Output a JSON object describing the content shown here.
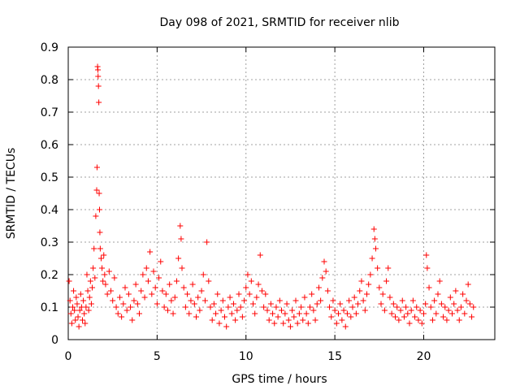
{
  "chart_data": {
    "type": "scatter",
    "title": "Day 098 of 2021, SRMTID for receiver nlib",
    "xlabel": "GPS time / hours",
    "ylabel": "SRMTID / TECUs",
    "xlim": [
      0,
      24
    ],
    "ylim": [
      0,
      0.9
    ],
    "x_ticks": [
      "0",
      "5",
      "10",
      "15",
      "20"
    ],
    "y_ticks": [
      "0",
      "0.1",
      "0.2",
      "0.3",
      "0.4",
      "0.5",
      "0.6",
      "0.7",
      "0.8",
      "0.9"
    ],
    "grid": true,
    "marker": "+",
    "series": [
      {
        "name": "SRMTID",
        "color": "#ff0000",
        "points": [
          [
            0.05,
            0.18
          ],
          [
            0.1,
            0.12
          ],
          [
            0.15,
            0.08
          ],
          [
            0.2,
            0.05
          ],
          [
            0.25,
            0.1
          ],
          [
            0.3,
            0.15
          ],
          [
            0.35,
            0.09
          ],
          [
            0.4,
            0.06
          ],
          [
            0.45,
            0.13
          ],
          [
            0.5,
            0.11
          ],
          [
            0.55,
            0.07
          ],
          [
            0.6,
            0.04
          ],
          [
            0.65,
            0.09
          ],
          [
            0.7,
            0.14
          ],
          [
            0.75,
            0.1
          ],
          [
            0.8,
            0.06
          ],
          [
            0.85,
            0.12
          ],
          [
            0.9,
            0.08
          ],
          [
            0.95,
            0.05
          ],
          [
            1.0,
            0.1
          ],
          [
            1.05,
            0.2
          ],
          [
            1.1,
            0.15
          ],
          [
            1.15,
            0.09
          ],
          [
            1.2,
            0.13
          ],
          [
            1.25,
            0.18
          ],
          [
            1.3,
            0.11
          ],
          [
            1.35,
            0.16
          ],
          [
            1.4,
            0.22
          ],
          [
            1.45,
            0.28
          ],
          [
            1.5,
            0.19
          ],
          [
            1.55,
            0.38
          ],
          [
            1.6,
            0.46
          ],
          [
            1.62,
            0.53
          ],
          [
            1.65,
            0.84
          ],
          [
            1.67,
            0.83
          ],
          [
            1.68,
            0.81
          ],
          [
            1.7,
            0.78
          ],
          [
            1.72,
            0.73
          ],
          [
            1.74,
            0.45
          ],
          [
            1.76,
            0.4
          ],
          [
            1.78,
            0.33
          ],
          [
            1.8,
            0.28
          ],
          [
            1.85,
            0.25
          ],
          [
            1.9,
            0.22
          ],
          [
            1.95,
            0.18
          ],
          [
            2.0,
            0.26
          ],
          [
            2.05,
            0.2
          ],
          [
            2.1,
            0.17
          ],
          [
            2.2,
            0.14
          ],
          [
            2.3,
            0.21
          ],
          [
            2.4,
            0.15
          ],
          [
            2.5,
            0.12
          ],
          [
            2.6,
            0.19
          ],
          [
            2.7,
            0.1
          ],
          [
            2.8,
            0.08
          ],
          [
            2.9,
            0.13
          ],
          [
            3.0,
            0.07
          ],
          [
            3.1,
            0.11
          ],
          [
            3.2,
            0.16
          ],
          [
            3.3,
            0.09
          ],
          [
            3.4,
            0.14
          ],
          [
            3.5,
            0.1
          ],
          [
            3.6,
            0.06
          ],
          [
            3.7,
            0.12
          ],
          [
            3.8,
            0.17
          ],
          [
            3.9,
            0.11
          ],
          [
            4.0,
            0.08
          ],
          [
            4.1,
            0.15
          ],
          [
            4.2,
            0.2
          ],
          [
            4.3,
            0.13
          ],
          [
            4.4,
            0.22
          ],
          [
            4.5,
            0.18
          ],
          [
            4.6,
            0.27
          ],
          [
            4.7,
            0.14
          ],
          [
            4.8,
            0.21
          ],
          [
            4.9,
            0.16
          ],
          [
            5.0,
            0.11
          ],
          [
            5.1,
            0.19
          ],
          [
            5.2,
            0.24
          ],
          [
            5.3,
            0.15
          ],
          [
            5.4,
            0.1
          ],
          [
            5.5,
            0.14
          ],
          [
            5.6,
            0.09
          ],
          [
            5.7,
            0.17
          ],
          [
            5.8,
            0.12
          ],
          [
            5.9,
            0.08
          ],
          [
            6.0,
            0.13
          ],
          [
            6.1,
            0.18
          ],
          [
            6.2,
            0.25
          ],
          [
            6.3,
            0.35
          ],
          [
            6.35,
            0.31
          ],
          [
            6.4,
            0.22
          ],
          [
            6.5,
            0.16
          ],
          [
            6.6,
            0.1
          ],
          [
            6.7,
            0.14
          ],
          [
            6.8,
            0.08
          ],
          [
            6.9,
            0.12
          ],
          [
            7.0,
            0.17
          ],
          [
            7.1,
            0.11
          ],
          [
            7.2,
            0.07
          ],
          [
            7.3,
            0.13
          ],
          [
            7.4,
            0.09
          ],
          [
            7.5,
            0.15
          ],
          [
            7.6,
            0.2
          ],
          [
            7.7,
            0.12
          ],
          [
            7.8,
            0.3
          ],
          [
            7.9,
            0.18
          ],
          [
            8.0,
            0.1
          ],
          [
            8.1,
            0.06
          ],
          [
            8.2,
            0.11
          ],
          [
            8.3,
            0.08
          ],
          [
            8.4,
            0.14
          ],
          [
            8.5,
            0.05
          ],
          [
            8.6,
            0.09
          ],
          [
            8.7,
            0.12
          ],
          [
            8.8,
            0.07
          ],
          [
            8.9,
            0.04
          ],
          [
            9.0,
            0.1
          ],
          [
            9.1,
            0.13
          ],
          [
            9.2,
            0.08
          ],
          [
            9.3,
            0.11
          ],
          [
            9.4,
            0.06
          ],
          [
            9.5,
            0.09
          ],
          [
            9.6,
            0.14
          ],
          [
            9.7,
            0.1
          ],
          [
            9.8,
            0.07
          ],
          [
            9.9,
            0.12
          ],
          [
            10.0,
            0.16
          ],
          [
            10.1,
            0.2
          ],
          [
            10.2,
            0.14
          ],
          [
            10.3,
            0.18
          ],
          [
            10.4,
            0.11
          ],
          [
            10.5,
            0.08
          ],
          [
            10.6,
            0.13
          ],
          [
            10.7,
            0.17
          ],
          [
            10.8,
            0.26
          ],
          [
            10.9,
            0.15
          ],
          [
            11.0,
            0.1
          ],
          [
            11.1,
            0.14
          ],
          [
            11.2,
            0.09
          ],
          [
            11.3,
            0.06
          ],
          [
            11.4,
            0.11
          ],
          [
            11.5,
            0.08
          ],
          [
            11.6,
            0.05
          ],
          [
            11.7,
            0.1
          ],
          [
            11.8,
            0.07
          ],
          [
            11.9,
            0.12
          ],
          [
            12.0,
            0.09
          ],
          [
            12.1,
            0.05
          ],
          [
            12.2,
            0.08
          ],
          [
            12.3,
            0.11
          ],
          [
            12.4,
            0.06
          ],
          [
            12.5,
            0.04
          ],
          [
            12.6,
            0.09
          ],
          [
            12.7,
            0.07
          ],
          [
            12.8,
            0.12
          ],
          [
            12.9,
            0.05
          ],
          [
            13.0,
            0.08
          ],
          [
            13.1,
            0.1
          ],
          [
            13.2,
            0.06
          ],
          [
            13.3,
            0.13
          ],
          [
            13.4,
            0.08
          ],
          [
            13.5,
            0.05
          ],
          [
            13.6,
            0.1
          ],
          [
            13.7,
            0.14
          ],
          [
            13.8,
            0.09
          ],
          [
            13.9,
            0.06
          ],
          [
            14.0,
            0.11
          ],
          [
            14.1,
            0.16
          ],
          [
            14.2,
            0.12
          ],
          [
            14.3,
            0.19
          ],
          [
            14.4,
            0.24
          ],
          [
            14.5,
            0.21
          ],
          [
            14.6,
            0.15
          ],
          [
            14.7,
            0.1
          ],
          [
            14.8,
            0.07
          ],
          [
            14.9,
            0.12
          ],
          [
            15.0,
            0.09
          ],
          [
            15.1,
            0.05
          ],
          [
            15.2,
            0.08
          ],
          [
            15.3,
            0.11
          ],
          [
            15.4,
            0.06
          ],
          [
            15.5,
            0.09
          ],
          [
            15.6,
            0.04
          ],
          [
            15.7,
            0.08
          ],
          [
            15.8,
            0.12
          ],
          [
            15.9,
            0.07
          ],
          [
            16.0,
            0.1
          ],
          [
            16.1,
            0.13
          ],
          [
            16.2,
            0.08
          ],
          [
            16.3,
            0.11
          ],
          [
            16.4,
            0.15
          ],
          [
            16.5,
            0.18
          ],
          [
            16.6,
            0.12
          ],
          [
            16.7,
            0.09
          ],
          [
            16.8,
            0.14
          ],
          [
            16.9,
            0.17
          ],
          [
            17.0,
            0.2
          ],
          [
            17.1,
            0.25
          ],
          [
            17.2,
            0.34
          ],
          [
            17.25,
            0.31
          ],
          [
            17.3,
            0.28
          ],
          [
            17.4,
            0.22
          ],
          [
            17.5,
            0.16
          ],
          [
            17.6,
            0.11
          ],
          [
            17.7,
            0.14
          ],
          [
            17.8,
            0.09
          ],
          [
            17.9,
            0.18
          ],
          [
            18.0,
            0.22
          ],
          [
            18.1,
            0.13
          ],
          [
            18.2,
            0.08
          ],
          [
            18.3,
            0.11
          ],
          [
            18.4,
            0.07
          ],
          [
            18.5,
            0.1
          ],
          [
            18.6,
            0.06
          ],
          [
            18.7,
            0.09
          ],
          [
            18.8,
            0.12
          ],
          [
            18.9,
            0.07
          ],
          [
            19.0,
            0.1
          ],
          [
            19.1,
            0.08
          ],
          [
            19.2,
            0.05
          ],
          [
            19.3,
            0.09
          ],
          [
            19.4,
            0.12
          ],
          [
            19.5,
            0.07
          ],
          [
            19.6,
            0.1
          ],
          [
            19.7,
            0.06
          ],
          [
            19.8,
            0.09
          ],
          [
            19.9,
            0.05
          ],
          [
            20.0,
            0.08
          ],
          [
            20.1,
            0.11
          ],
          [
            20.15,
            0.26
          ],
          [
            20.2,
            0.22
          ],
          [
            20.3,
            0.16
          ],
          [
            20.4,
            0.1
          ],
          [
            20.5,
            0.06
          ],
          [
            20.6,
            0.12
          ],
          [
            20.7,
            0.08
          ],
          [
            20.8,
            0.14
          ],
          [
            20.9,
            0.18
          ],
          [
            21.0,
            0.11
          ],
          [
            21.1,
            0.07
          ],
          [
            21.2,
            0.1
          ],
          [
            21.3,
            0.06
          ],
          [
            21.4,
            0.09
          ],
          [
            21.5,
            0.13
          ],
          [
            21.6,
            0.08
          ],
          [
            21.7,
            0.11
          ],
          [
            21.8,
            0.15
          ],
          [
            21.9,
            0.09
          ],
          [
            22.0,
            0.06
          ],
          [
            22.1,
            0.1
          ],
          [
            22.2,
            0.14
          ],
          [
            22.3,
            0.08
          ],
          [
            22.4,
            0.12
          ],
          [
            22.5,
            0.17
          ],
          [
            22.6,
            0.11
          ],
          [
            22.7,
            0.07
          ],
          [
            22.8,
            0.1
          ]
        ]
      }
    ]
  }
}
